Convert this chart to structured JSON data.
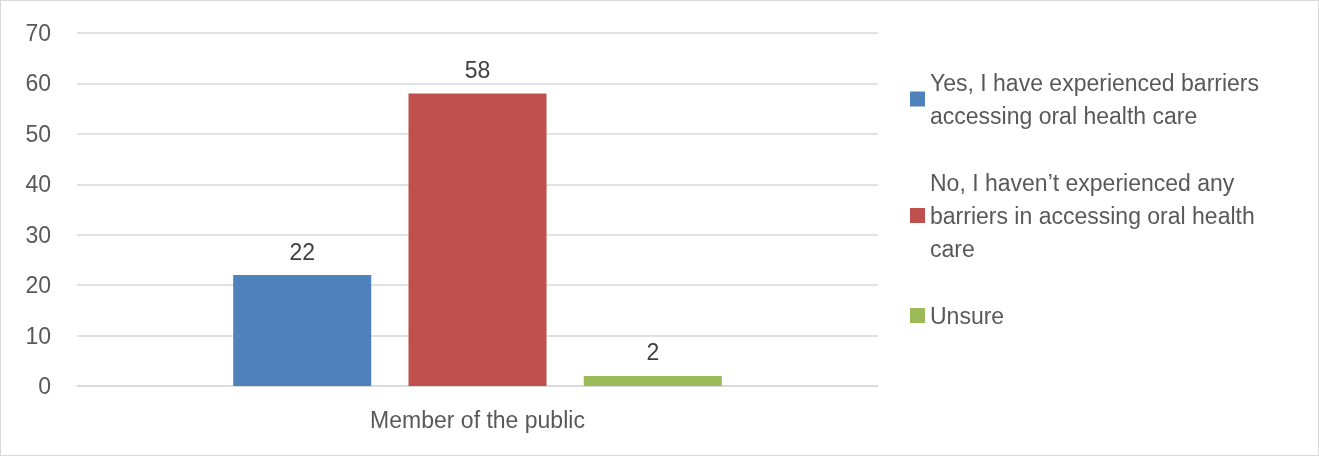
{
  "chart_data": {
    "type": "bar",
    "categories": [
      "Member of the public"
    ],
    "series": [
      {
        "name": "Yes, I have experienced barriers accessing oral health care",
        "color": "#4f81bd",
        "values": [
          22
        ]
      },
      {
        "name": "No, I haven’t experienced any barriers in accessing oral health care",
        "color": "#c0504d",
        "values": [
          58
        ]
      },
      {
        "name": "Unsure",
        "color": "#9bbb59",
        "values": [
          2
        ]
      }
    ],
    "ylim": [
      0,
      70
    ],
    "yticks": [
      0,
      10,
      20,
      30,
      40,
      50,
      60,
      70
    ],
    "grid": "y",
    "legend": "right",
    "data_labels": true
  }
}
